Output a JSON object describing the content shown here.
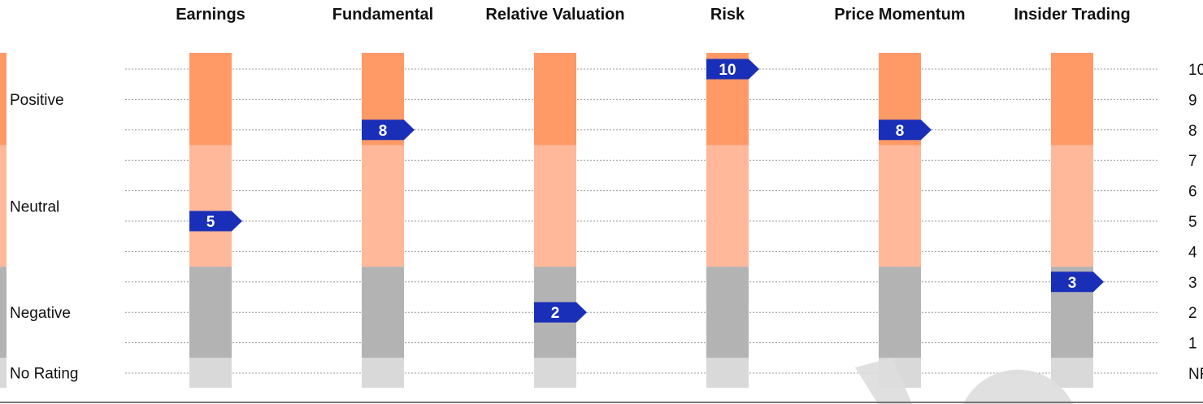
{
  "chart_data": {
    "type": "bar",
    "categories": [
      "Earnings",
      "Fundamental",
      "Relative Valuation",
      "Risk",
      "Price Momentum",
      "Insider Trading"
    ],
    "values": [
      5,
      8,
      2,
      10,
      8,
      3
    ],
    "bands": [
      {
        "label": "Positive",
        "from": 8,
        "to": 10,
        "color": "#ff9966"
      },
      {
        "label": "Neutral",
        "from": 4,
        "to": 7,
        "color": "#ffb899"
      },
      {
        "label": "Negative",
        "from": 1,
        "to": 3,
        "color": "#b3b3b3"
      },
      {
        "label": "No Rating",
        "from": 0,
        "to": 0,
        "color": "#d9d9d9"
      }
    ],
    "y_ticks": [
      "NR",
      "1",
      "2",
      "3",
      "4",
      "5",
      "6",
      "7",
      "8",
      "9",
      "10"
    ],
    "ylim": [
      0,
      10
    ],
    "grid": true,
    "marker_color": "#1a2fb8",
    "watermark_color": "#dddddd"
  }
}
